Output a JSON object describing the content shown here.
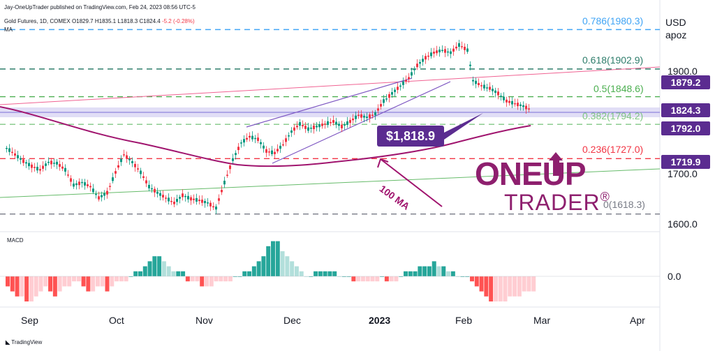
{
  "header": {
    "publisher_line": "Jay-OneUpTrader published on TradingView.com, Feb 24, 2023 08:56 UTC-5",
    "symbol": "Gold Futures, 1D, COMEX",
    "ohlc": "O1829.7 H1835.1 L1818.3 C1824.4",
    "change": "-5.2 (-0.28%)",
    "indicator": "MA"
  },
  "chart_data": {
    "type": "candlestick",
    "unit_labels": [
      "USD",
      "apoz"
    ],
    "x_months": [
      "Sep",
      "Oct",
      "Nov",
      "Dec",
      "2023",
      "Feb",
      "Mar",
      "Apr"
    ],
    "y_ticks": [
      "1900.0",
      "1700.0",
      "1600.0"
    ],
    "price_tags": [
      {
        "label": "1879.2",
        "value": 1879.2
      },
      {
        "label": "1824.3",
        "value": 1824.3
      },
      {
        "label": "1792.0",
        "value": 1792.0
      },
      {
        "label": "1719.9",
        "value": 1719.9
      }
    ],
    "fib_levels": [
      {
        "ratio": "0.786",
        "value": 1980.3,
        "label": "0.786(1980.3)",
        "color": "#42a5f5"
      },
      {
        "ratio": "0.618",
        "value": 1902.9,
        "label": "0.618(1902.9)",
        "color": "#2e7d6b"
      },
      {
        "ratio": "0.5",
        "value": 1848.6,
        "label": "0.5(1848.6)",
        "color": "#4caf50"
      },
      {
        "ratio": "0.382",
        "value": 1794.2,
        "label": "0.382(1794.2)",
        "color": "#81c784"
      },
      {
        "ratio": "0.236",
        "value": 1727.0,
        "label": "0.236(1727.0)",
        "color": "#f23645"
      },
      {
        "ratio": "0",
        "value": 1618.3,
        "label": "0(1618.3)",
        "color": "#787b86"
      }
    ],
    "annotations": {
      "callout": "$1,818.9",
      "ma_note": "100 MA"
    },
    "macd": {
      "label": "MACD",
      "zero_label": "0.0",
      "histogram": [
        -2,
        -3,
        -4,
        -4,
        -5,
        -5,
        -4,
        -3,
        -2,
        -3,
        -4,
        -3,
        -2,
        -2,
        -1,
        -1,
        -2,
        -3,
        -3,
        -2,
        -2,
        -3,
        -2,
        -1,
        -1,
        -1,
        0,
        1,
        1,
        2,
        3,
        4,
        4,
        3,
        2,
        1,
        1,
        1,
        -1,
        -1,
        -1,
        -2,
        -2,
        -2,
        -1,
        -1,
        -1,
        -1,
        0,
        0,
        1,
        1,
        2,
        3,
        4,
        6,
        7,
        7,
        5,
        4,
        3,
        2,
        1,
        0,
        0,
        1,
        1,
        1,
        1,
        1,
        0,
        0,
        0,
        -1,
        -1,
        -1,
        -1,
        -1,
        -1,
        0,
        -1,
        -1,
        -1,
        0,
        1,
        1,
        1,
        2,
        2,
        2,
        3,
        2,
        2,
        1,
        1,
        0,
        0,
        0,
        -1,
        -2,
        -3,
        -4,
        -5,
        -5,
        -5,
        -5,
        -4,
        -4,
        -4,
        -3,
        -3,
        -3
      ]
    }
  },
  "logo": {
    "top": "ONEUP",
    "bottom": "TRADER",
    "mark": "®"
  },
  "footer": {
    "brand": "TradingView"
  }
}
